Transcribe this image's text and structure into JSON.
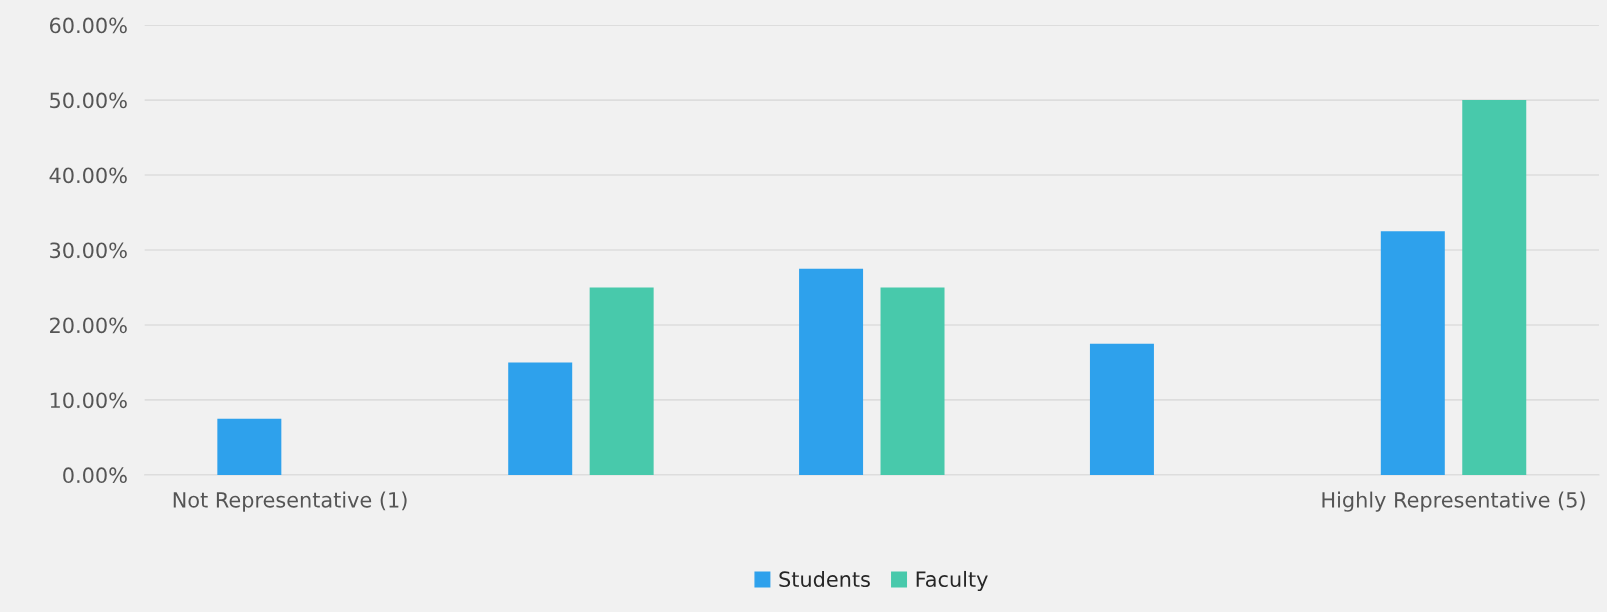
{
  "chart_data": {
    "type": "bar",
    "categories": [
      "Not Representative (1)",
      null,
      null,
      null,
      "Highly Representative (5)"
    ],
    "series": [
      {
        "name": "Students",
        "color": "#2ea1ec",
        "values": [
          7.5,
          15,
          27.5,
          17.5,
          32.5
        ]
      },
      {
        "name": "Faculty",
        "color": "#48c9ab",
        "values": [
          0,
          25,
          25,
          0,
          50
        ]
      }
    ],
    "ylim": [
      0,
      60
    ],
    "yticks": [
      {
        "value": 0,
        "label": "0.00%"
      },
      {
        "value": 10,
        "label": "10.00%"
      },
      {
        "value": 20,
        "label": "20.00%"
      },
      {
        "value": 30,
        "label": "30.00%"
      },
      {
        "value": 40,
        "label": "40.00%"
      },
      {
        "value": 50,
        "label": "50.00%"
      },
      {
        "value": 60,
        "label": "60.00%"
      }
    ],
    "grid": "y",
    "legend": "bottom"
  }
}
